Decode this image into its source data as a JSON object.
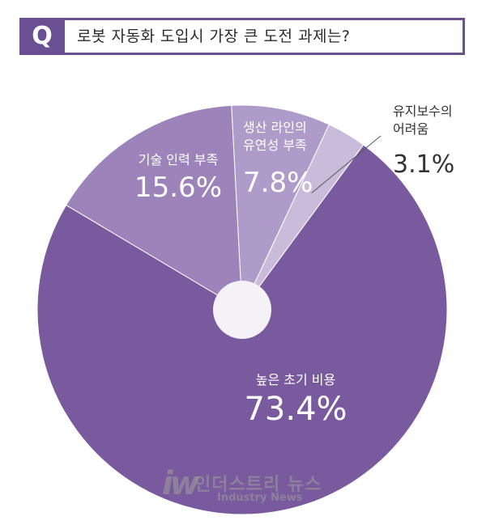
{
  "question": {
    "badge": "Q",
    "text": "로봇 자동화 도입시 가장 큰 도전 과제는?"
  },
  "chart_data": {
    "type": "pie",
    "unit": "%",
    "slices": [
      {
        "label": "높은 초기 비용",
        "value": 73.4,
        "display": "73.4%",
        "color": "#7a5a9f"
      },
      {
        "label": "기술 인력 부족",
        "value": 15.6,
        "display": "15.6%",
        "color": "#9c84bb"
      },
      {
        "label": "생산 라인의 유연성 부족",
        "value": 7.8,
        "display": "7.8%",
        "color": "#ae9bc9"
      },
      {
        "label": "유지보수의 어려움",
        "value": 3.1,
        "display": "3.1%",
        "color": "#c9bcdb"
      }
    ],
    "labels_split": [
      [
        "높은 초기 비용"
      ],
      [
        "기술 인력 부족"
      ],
      [
        "생산 라인의",
        "유연성 부족"
      ],
      [
        "유지보수의",
        "어려움"
      ]
    ],
    "center_hole_color": "#f4f2f7"
  },
  "watermark": {
    "logo": "iw",
    "name": "인더스트리 뉴스",
    "sub": "Industry News"
  }
}
